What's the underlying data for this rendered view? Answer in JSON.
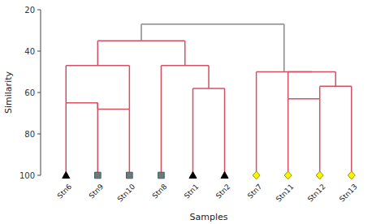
{
  "chart_data": {
    "type": "dendrogram",
    "x_label": "Samples",
    "y_label": "Similarity",
    "categories": [
      "Stn6",
      "Stn9",
      "Stn10",
      "Stn8",
      "Stn1",
      "Stn2",
      "Stn7",
      "Stn11",
      "Stn12",
      "Stn13"
    ],
    "markers": [
      "triangle",
      "square",
      "square",
      "square",
      "triangle",
      "triangle",
      "diamond",
      "diamond",
      "diamond",
      "diamond"
    ],
    "colors": [
      "black",
      "#6b7b7b",
      "#6b7b7b",
      "#6b7b7b",
      "black",
      "black",
      "#f5f500",
      "#f5f500",
      "#f5f500",
      "#f5f500"
    ],
    "edge_colors": [
      "black",
      "#4a5a5a",
      "#4a5a5a",
      "#4a5a5a",
      "black",
      "black",
      "#999900",
      "#999900",
      "#999900",
      "#999900"
    ],
    "color": "#d45060",
    "merges": [
      {
        "height": 65,
        "left": "Stn6",
        "right": "Stn9"
      },
      {
        "height": 68,
        "left": "Stn9",
        "right": "Stn10"
      },
      {
        "height": 47,
        "left": "Stn6",
        "right": "Stn10"
      },
      {
        "height": 58,
        "left": "Stn1",
        "right": "Stn2"
      },
      {
        "height": 47,
        "left": "Stn8",
        "right": 3
      },
      {
        "height": 35,
        "left": 2,
        "right": 4
      },
      {
        "height": 63,
        "left": "Stn11",
        "right": "Stn12"
      },
      {
        "height": 57,
        "left": "Stn12",
        "right": "Stn13"
      },
      {
        "height": 50,
        "left": "Stn11",
        "right": 7
      },
      {
        "height": 50,
        "left": "Stn7",
        "right": 8
      },
      {
        "height": 27,
        "left": 5,
        "right": 9,
        "color": "#888888"
      }
    ],
    "ylim": [
      100,
      20
    ],
    "yticks": [
      20,
      40,
      60,
      80,
      100
    ],
    "grid": false
  }
}
